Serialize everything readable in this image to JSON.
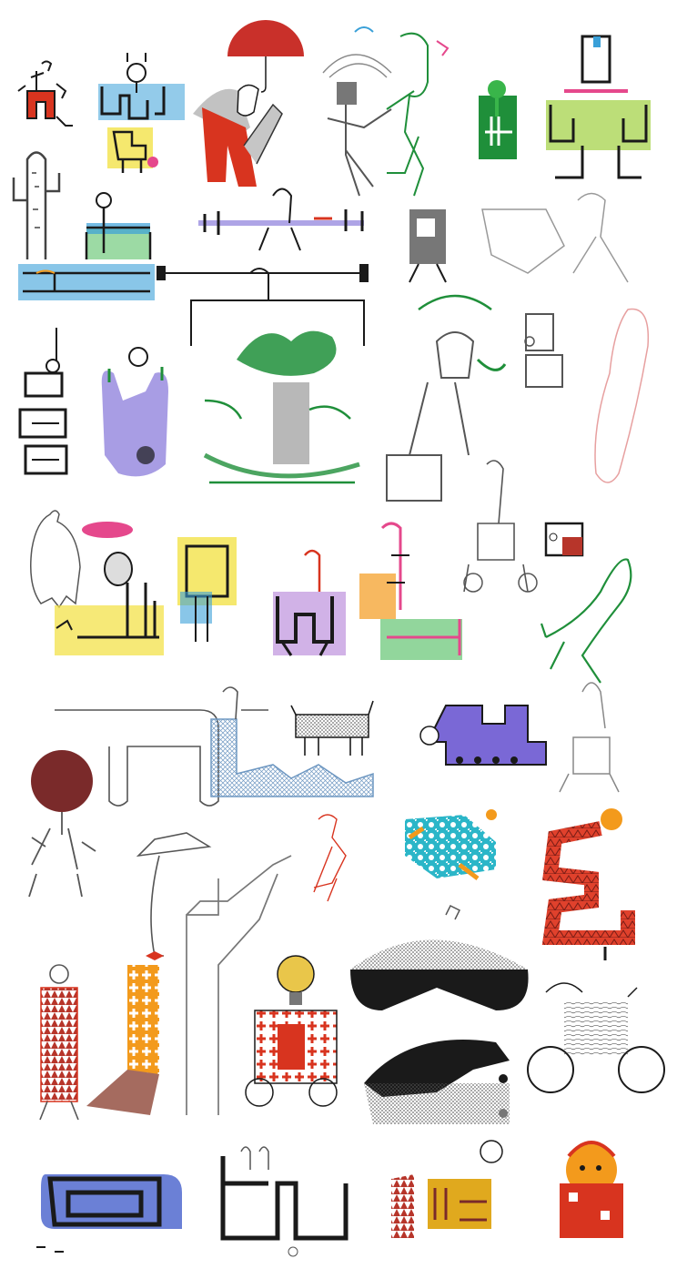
{
  "sheet": {
    "description_colors": {
      "ink": "#1a1a1a",
      "pencil": "#6e6e6e",
      "red": "#d8341f",
      "umbrella_red": "#c9302a",
      "green": "#1f8f3a",
      "bright_green": "#39b54a",
      "lime": "#a6d34b",
      "blue": "#3aa0d8",
      "purple": "#7a68d6",
      "violet": "#8b3fc4",
      "yellow": "#f3e24a",
      "orange": "#f39a1c",
      "pink": "#e5488c",
      "teal": "#2bb6c8",
      "maroon": "#7a2a2a",
      "brick": "#b7352a",
      "gold": "#e0a91e",
      "bulb": "#e9c64a",
      "pale_red": "#e7a0a0",
      "hatch_blue": "#6f98c2",
      "navy": "#1e3a8a"
    }
  }
}
